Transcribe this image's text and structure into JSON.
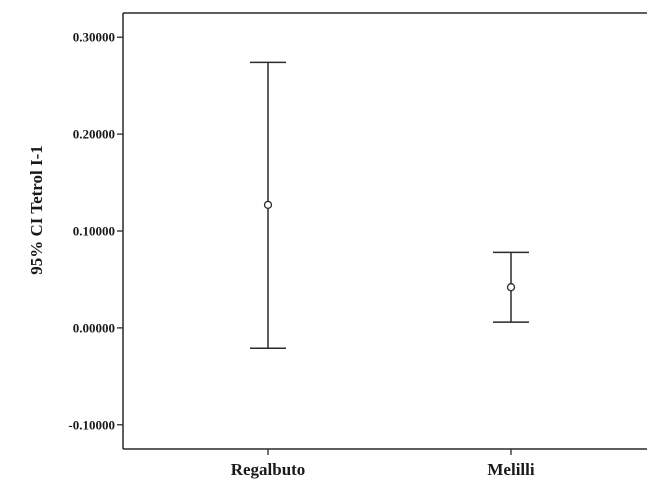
{
  "chart_data": {
    "type": "errorbar",
    "title": "",
    "xlabel": "",
    "ylabel": "95% CI Tetrol I-1",
    "categories": [
      "Regalbuto",
      "Melilli"
    ],
    "means": [
      0.127,
      0.042
    ],
    "lower": [
      -0.021,
      0.006
    ],
    "upper": [
      0.274,
      0.078
    ],
    "ylim": [
      -0.125,
      0.325
    ],
    "yticks": [
      -0.1,
      0.0,
      0.1,
      0.2,
      0.3
    ],
    "ytick_labels": [
      "-0.10000",
      "0.00000",
      "0.10000",
      "0.20000",
      "0.30000"
    ],
    "grid": false,
    "colors": {
      "stroke": "#2a2a2a",
      "background": "#ffffff"
    }
  }
}
